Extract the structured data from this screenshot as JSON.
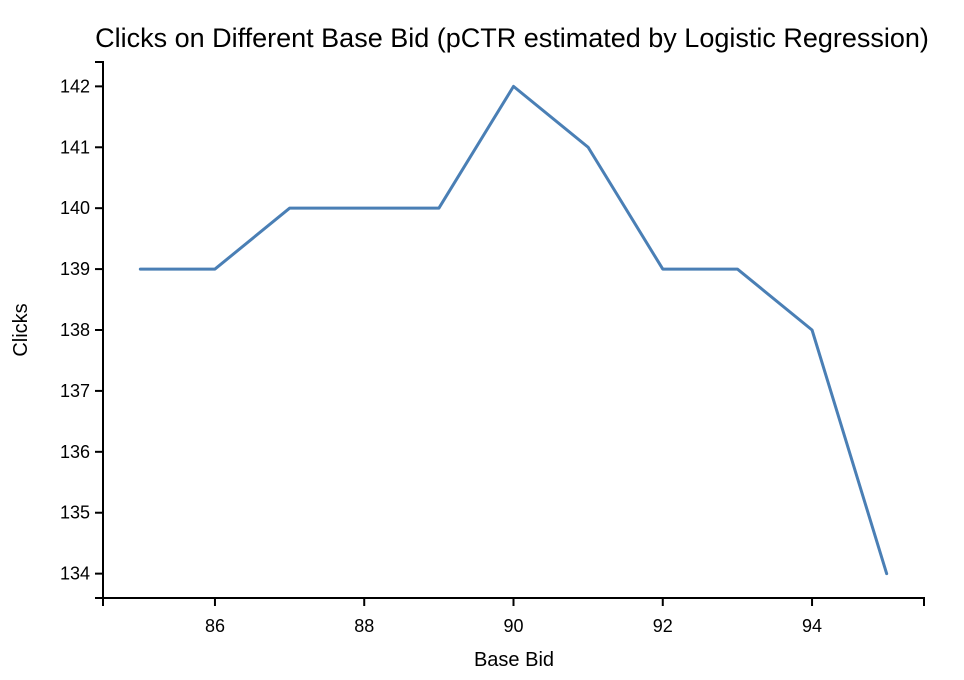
{
  "chart_data": {
    "type": "line",
    "title": "Clicks on Different Base Bid (pCTR estimated by Logistic Regression)",
    "xlabel": "Base Bid",
    "ylabel": "Clicks",
    "x": [
      85,
      86,
      87,
      88,
      89,
      90,
      91,
      92,
      93,
      94,
      95
    ],
    "series": [
      {
        "values": [
          139,
          139,
          140,
          140,
          140,
          142,
          141,
          139,
          139,
          138,
          134
        ]
      }
    ],
    "xlim": [
      84.5,
      95.5
    ],
    "ylim": [
      133.6,
      142.4
    ],
    "xticks": [
      86,
      88,
      90,
      92,
      94
    ],
    "xtick_labels": [
      "86",
      "88",
      "90",
      "92",
      "94"
    ],
    "yticks": [
      134,
      135,
      136,
      137,
      138,
      139,
      140,
      141,
      142
    ],
    "ytick_labels": [
      "134",
      "135",
      "136",
      "137",
      "138",
      "139",
      "140",
      "141",
      "142"
    ],
    "grid": false,
    "colors": {
      "line": "#4a7fb5"
    }
  }
}
